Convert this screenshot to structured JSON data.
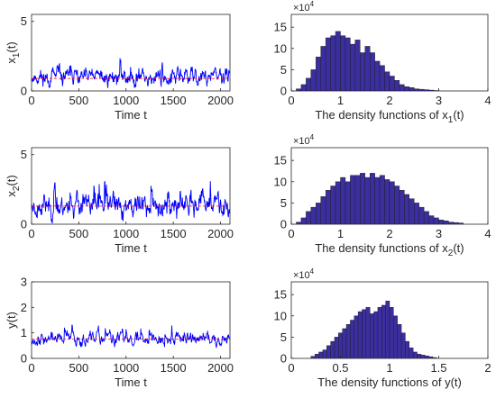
{
  "chart_data": [
    {
      "id": "x1-series",
      "type": "line",
      "xlabel": "Time t",
      "ylabel_main": "x",
      "ylabel_sub": "1",
      "ylabel_tail": "(t)",
      "xlim": [
        0,
        2100
      ],
      "ylim": [
        0,
        5.5
      ],
      "xticks": [
        0,
        500,
        1000,
        1500,
        2000
      ],
      "yticks": [
        0,
        5
      ],
      "series_color": "#0000ff",
      "mean_color": "#ff0000",
      "mean_value": 0.9,
      "length": 2100,
      "seed": 11,
      "base": 1.0,
      "spread": 0.55,
      "min_value": 0.05,
      "max_value": 2.9
    },
    {
      "id": "x1-density",
      "type": "bar",
      "xlabel_main": "The density functions of x",
      "xlabel_sub": "1",
      "xlabel_tail": "(t)",
      "multiplier": "×10",
      "multiplier_exp": "4",
      "xlim": [
        0,
        4
      ],
      "ylim": [
        0,
        18
      ],
      "xticks": [
        0,
        1,
        2,
        3,
        4
      ],
      "yticks": [
        0,
        5,
        10,
        15
      ],
      "bar_color": "#3b2e9e",
      "bin_start": 0.1,
      "bin_width": 0.1,
      "values": [
        0.5,
        1.5,
        3,
        5,
        8,
        10.5,
        12.5,
        13,
        14,
        13,
        12.5,
        11,
        12,
        9,
        10.5,
        9,
        7,
        6,
        4.5,
        3.5,
        2.5,
        1.5,
        1,
        0.8,
        0.5,
        0.4,
        0.3,
        0.2,
        0.1
      ]
    },
    {
      "id": "x2-series",
      "type": "line",
      "xlabel": "Time t",
      "ylabel_main": "x",
      "ylabel_sub": "2",
      "ylabel_tail": "(t)",
      "xlim": [
        0,
        2100
      ],
      "ylim": [
        0,
        5.5
      ],
      "xticks": [
        0,
        500,
        1000,
        1500,
        2000
      ],
      "yticks": [
        0,
        5
      ],
      "series_color": "#0000ff",
      "mean_color": "#ff0000",
      "mean_value": 1.3,
      "length": 2100,
      "seed": 23,
      "base": 1.35,
      "spread": 0.75,
      "min_value": 0.1,
      "max_value": 3.1
    },
    {
      "id": "x2-density",
      "type": "bar",
      "xlabel_main": "The density functions of x",
      "xlabel_sub": "2",
      "xlabel_tail": "(t)",
      "multiplier": "×10",
      "multiplier_exp": "4",
      "xlim": [
        0,
        4
      ],
      "ylim": [
        0,
        18
      ],
      "xticks": [
        0,
        1,
        2,
        3,
        4
      ],
      "yticks": [
        0,
        5,
        10,
        15
      ],
      "bar_color": "#3b2e9e",
      "bin_start": 0.1,
      "bin_width": 0.1,
      "values": [
        0.5,
        1.5,
        3,
        4,
        5,
        6.5,
        8,
        9,
        10,
        11,
        10,
        11.5,
        11.5,
        12,
        11,
        12,
        11,
        11.5,
        10.5,
        10,
        9,
        8,
        7,
        6,
        5,
        4,
        3,
        2,
        1.5,
        1,
        0.8,
        0.5,
        0.4,
        0.3
      ]
    },
    {
      "id": "y-series",
      "type": "line",
      "xlabel": "Time t",
      "ylabel_main": "y(t)",
      "ylabel_sub": "",
      "ylabel_tail": "",
      "xlim": [
        0,
        2100
      ],
      "ylim": [
        0,
        3
      ],
      "xticks": [
        0,
        500,
        1000,
        1500,
        2000
      ],
      "yticks": [
        0,
        1,
        2,
        3
      ],
      "series_color": "#0000ff",
      "mean_color": "#ff0000",
      "mean_value": 0.75,
      "length": 2100,
      "seed": 37,
      "base": 0.78,
      "spread": 0.22,
      "min_value": 0.25,
      "max_value": 1.5
    },
    {
      "id": "y-density",
      "type": "bar",
      "xlabel_main": "The density functions of y(t)",
      "xlabel_sub": "",
      "xlabel_tail": "",
      "multiplier": "×10",
      "multiplier_exp": "4",
      "xlim": [
        0,
        2
      ],
      "ylim": [
        0,
        18
      ],
      "xticks": [
        0,
        0.5,
        1,
        1.5,
        2
      ],
      "yticks": [
        0,
        5,
        10,
        15
      ],
      "bar_color": "#3b2e9e",
      "bin_start": 0.2,
      "bin_width": 0.04,
      "values": [
        0.5,
        1,
        1.5,
        2,
        3,
        4,
        5,
        6,
        7,
        8,
        9,
        10,
        11,
        11.5,
        12,
        10.5,
        11,
        12,
        12.5,
        13.5,
        12,
        10,
        8,
        6,
        4,
        2.5,
        1.5,
        1,
        0.8,
        0.6,
        0.4,
        0.2
      ]
    }
  ]
}
